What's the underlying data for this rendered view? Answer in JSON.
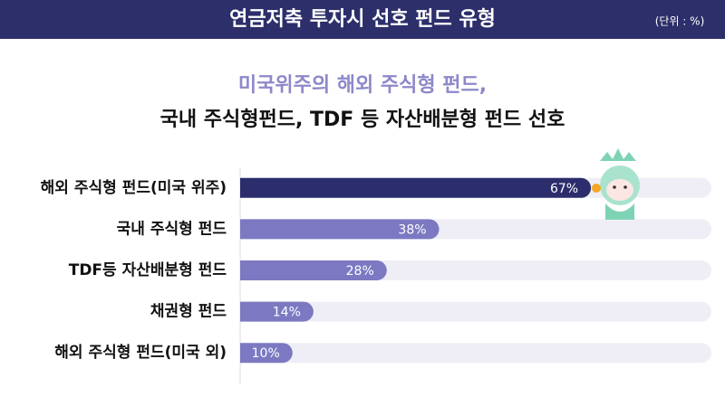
{
  "chart_data": {
    "type": "bar",
    "orientation": "horizontal",
    "title": "연금저축 투자시 선호 펀드 유형",
    "unit": "(단위 : %)",
    "subtitle": [
      "미국위주의 해외 주식형 펀드,",
      "국내 주식형펀드, TDF 등 자산배분형 펀드 선호"
    ],
    "categories": [
      "해외 주식형 펀드(미국 위주)",
      "국내 주식형 펀드",
      "TDF등 자산배분형 펀드",
      "채권형 펀드",
      "해외 주식형 펀드(미국 외)"
    ],
    "values": [
      67,
      38,
      28,
      14,
      10
    ],
    "value_labels": [
      "67%",
      "38%",
      "28%",
      "14%",
      "10%"
    ],
    "colors": [
      "#2c2d6c",
      "#7c79c2",
      "#7c79c2",
      "#7c79c2",
      "#7c79c2"
    ],
    "xlim": [
      0,
      90
    ]
  }
}
